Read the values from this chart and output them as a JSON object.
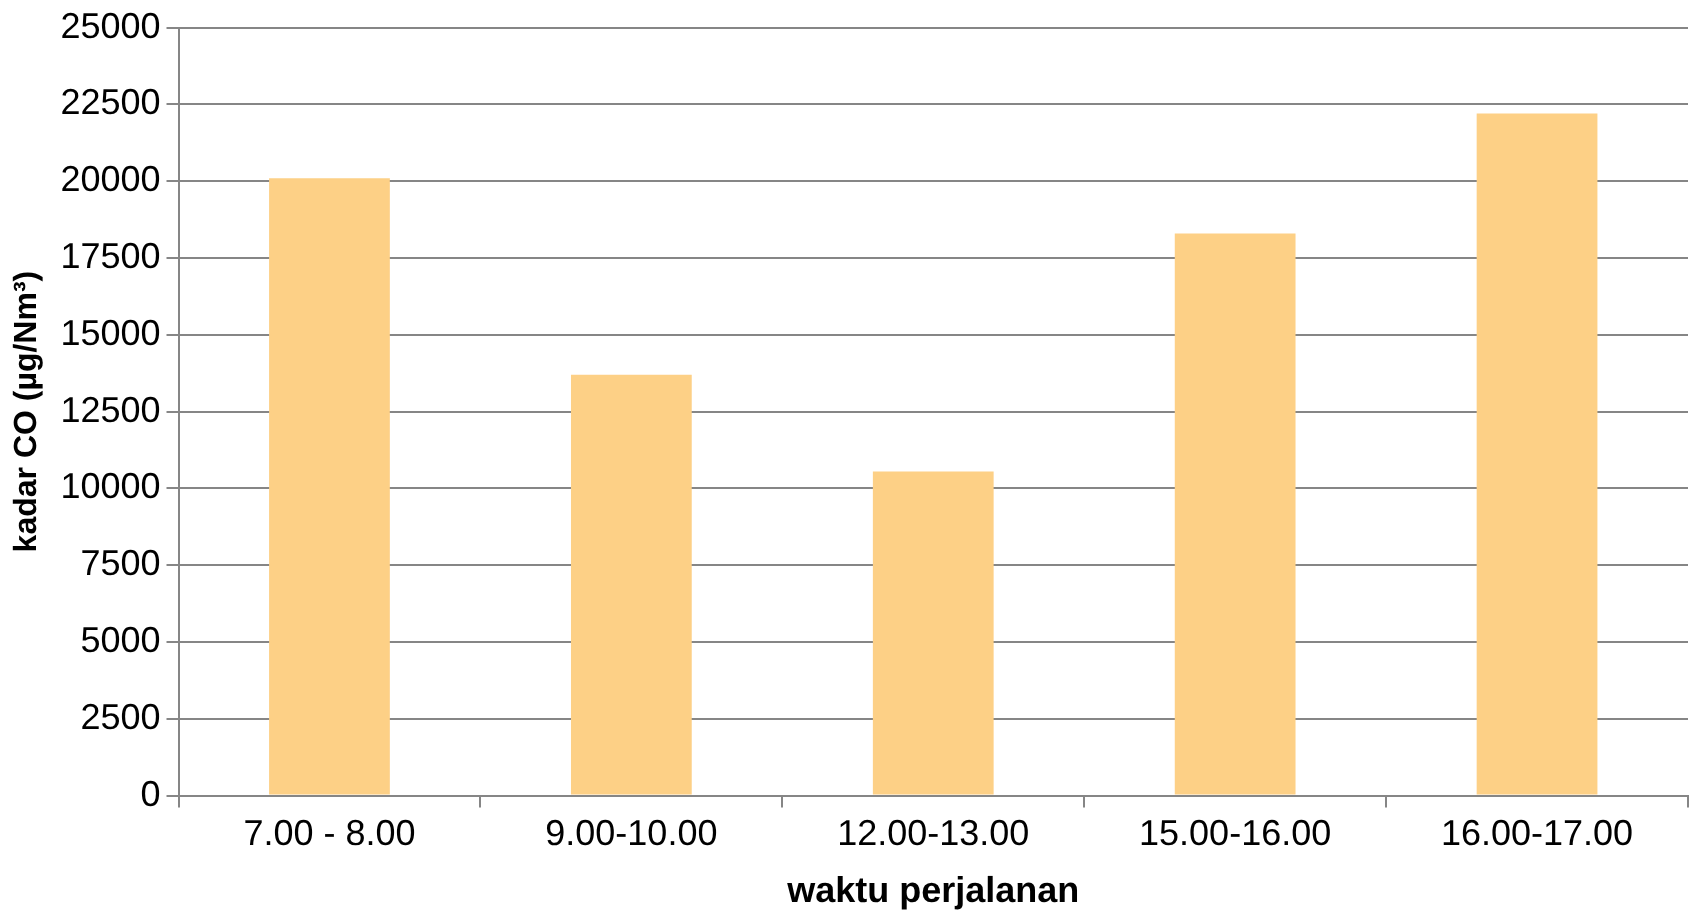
{
  "chart_data": {
    "type": "bar",
    "xlabel": "waktu perjalanan",
    "ylabel": "kadar CO (µg/Nm³)",
    "categories": [
      "7.00 - 8.00",
      "9.00-10.00",
      "12.00-13.00",
      "15.00-16.00",
      "16.00-17.00"
    ],
    "values": [
      20100,
      13700,
      10550,
      18300,
      22200
    ],
    "color": "#fdd086",
    "ylim": [
      0,
      25000
    ],
    "yticks": [
      0,
      2500,
      5000,
      7500,
      10000,
      12500,
      15000,
      17500,
      20000,
      22500,
      25000
    ],
    "grid": "y",
    "legend": false
  }
}
